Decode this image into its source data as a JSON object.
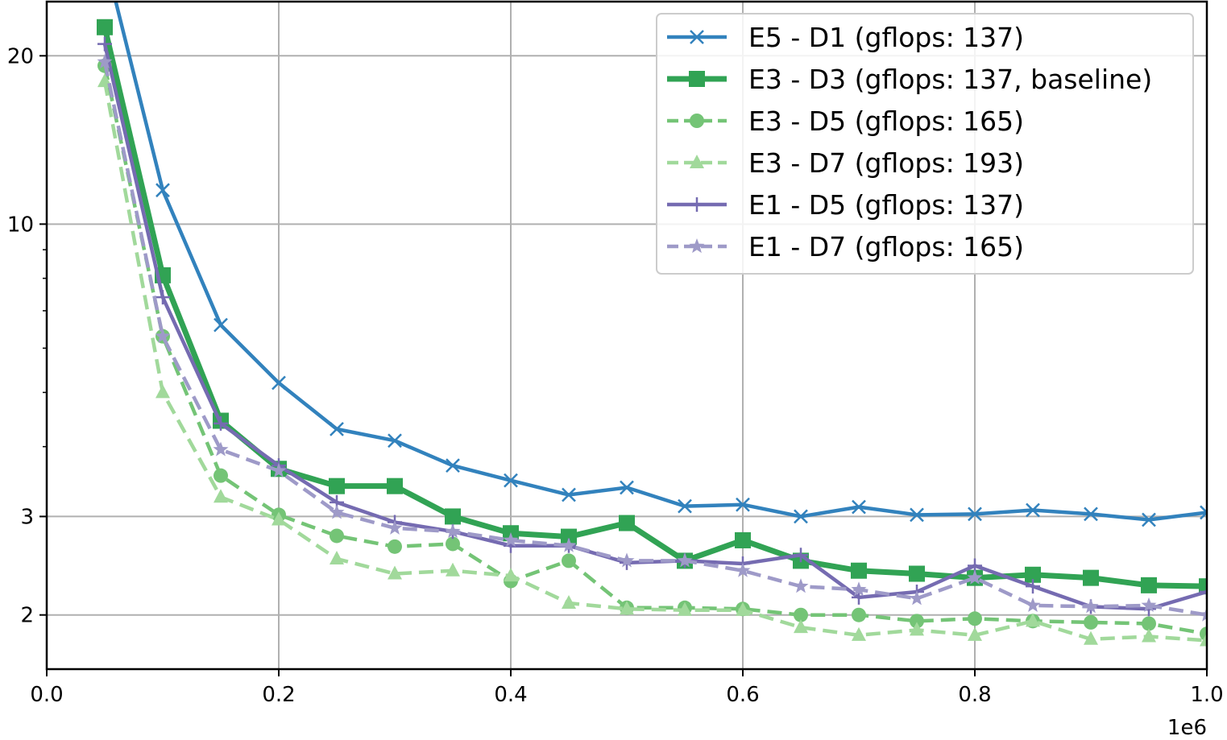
{
  "chart_data": {
    "type": "line",
    "title": "",
    "xlabel": "",
    "ylabel": "",
    "x_offset_label": "1e6",
    "xlim": [
      0.0,
      1.0
    ],
    "ylim": [
      1.6,
      25
    ],
    "y_scale": "log",
    "grid": true,
    "legend_position": "top-right",
    "x_ticks": [
      0.0,
      0.2,
      0.4,
      0.6,
      0.8,
      1.0
    ],
    "x_tick_labels": [
      "0.0",
      "0.2",
      "0.4",
      "0.6",
      "0.8",
      "1.0"
    ],
    "y_ticks": [
      2,
      3,
      10,
      20
    ],
    "y_tick_labels": [
      "2",
      "3",
      "10",
      "20"
    ],
    "x": [
      0.05,
      0.1,
      0.15,
      0.2,
      0.25,
      0.3,
      0.35,
      0.4,
      0.45,
      0.5,
      0.55,
      0.6,
      0.65,
      0.7,
      0.75,
      0.8,
      0.85,
      0.9,
      0.95,
      1.0
    ],
    "series": [
      {
        "name": "E5 - D1 (gflops: 137)",
        "color": "#3282bd",
        "marker": "x",
        "dash": "solid",
        "width": 4.5,
        "values": [
          30.0,
          11.5,
          6.6,
          5.2,
          4.3,
          4.1,
          3.7,
          3.48,
          3.28,
          3.38,
          3.13,
          3.15,
          3.0,
          3.12,
          3.02,
          3.03,
          3.08,
          3.03,
          2.96,
          3.05
        ]
      },
      {
        "name": "E3 - D3 (gflops: 137, baseline)",
        "color": "#31a354",
        "marker": "square",
        "dash": "solid",
        "width": 7,
        "values": [
          22.5,
          8.1,
          4.45,
          3.65,
          3.4,
          3.4,
          3.0,
          2.8,
          2.76,
          2.92,
          2.5,
          2.72,
          2.5,
          2.4,
          2.37,
          2.33,
          2.36,
          2.33,
          2.26,
          2.25
        ]
      },
      {
        "name": "E3 - D5 (gflops: 165)",
        "color": "#74c476",
        "marker": "circle",
        "dash": "dashed",
        "width": 4.5,
        "values": [
          19.2,
          6.3,
          3.55,
          3.02,
          2.77,
          2.65,
          2.68,
          2.3,
          2.5,
          2.06,
          2.06,
          2.05,
          2.0,
          2.0,
          1.95,
          1.97,
          1.95,
          1.94,
          1.93,
          1.85
        ]
      },
      {
        "name": "E3 - D7 (gflops: 193)",
        "color": "#a1d99b",
        "marker": "triangle",
        "dash": "dashed",
        "width": 4.5,
        "values": [
          18.0,
          5.0,
          3.25,
          2.96,
          2.52,
          2.37,
          2.4,
          2.35,
          2.1,
          2.05,
          2.04,
          2.04,
          1.9,
          1.84,
          1.88,
          1.84,
          1.95,
          1.81,
          1.83,
          1.8
        ]
      },
      {
        "name": "E1 - D5 (gflops: 137)",
        "color": "#756bb1",
        "marker": "plus",
        "dash": "solid",
        "width": 4.5,
        "values": [
          21.0,
          7.4,
          4.4,
          3.7,
          3.18,
          2.93,
          2.82,
          2.66,
          2.66,
          2.48,
          2.5,
          2.47,
          2.56,
          2.15,
          2.2,
          2.45,
          2.25,
          2.07,
          2.05,
          2.2
        ]
      },
      {
        "name": "E1 - D7 (gflops: 165)",
        "color": "#9e9ac8",
        "marker": "star",
        "dash": "dashed",
        "width": 4.5,
        "values": [
          19.5,
          6.3,
          3.95,
          3.62,
          3.05,
          2.86,
          2.82,
          2.72,
          2.66,
          2.5,
          2.5,
          2.4,
          2.25,
          2.22,
          2.14,
          2.33,
          2.08,
          2.07,
          2.08,
          2.0
        ]
      }
    ]
  }
}
